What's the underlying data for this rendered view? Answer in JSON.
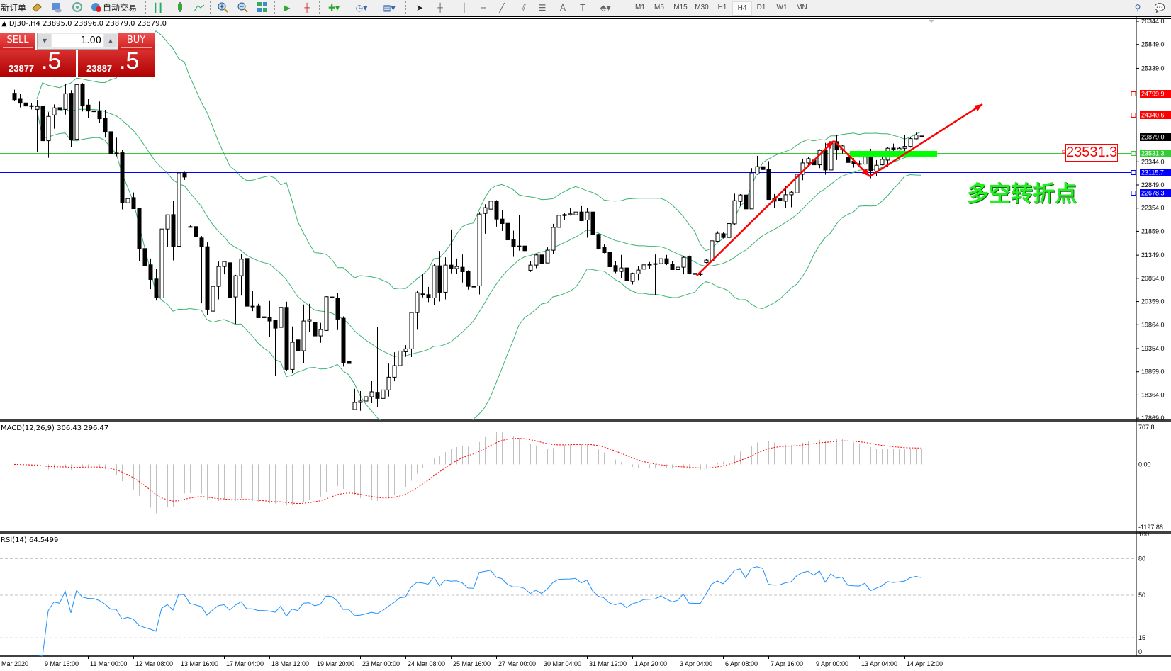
{
  "toolbar": {
    "new_order_label": "新订单",
    "auto_trading_label": "自动交易",
    "icons": [
      "new-order-icon",
      "navigator-icon",
      "data-window-icon",
      "signals-icon",
      "auto-trading-icon",
      "bar-chart-icon",
      "candlestick-icon",
      "line-chart-icon",
      "zoom-in-icon",
      "zoom-out-icon",
      "tile-windows-icon",
      "autoscroll-icon",
      "chart-shift-icon",
      "indicators-icon",
      "periods-icon",
      "templates-icon",
      "cursor-icon",
      "crosshair-icon",
      "vertical-line-icon",
      "horizontal-line-icon",
      "trendline-icon",
      "equidistant-channel-icon",
      "fibonacci-icon",
      "text-icon",
      "text-label-icon",
      "arrows-icon",
      "search-icon",
      "chat-icon"
    ],
    "timeframes": [
      "M1",
      "M5",
      "M15",
      "M30",
      "H1",
      "H4",
      "D1",
      "W1",
      "MN"
    ],
    "active_timeframe": "H4"
  },
  "chart_header": "DJ30-,H4  23895.0 23896.0 23879.0 23879.0",
  "trade_panel": {
    "sell_label": "SELL",
    "buy_label": "BUY",
    "lot_value": "1.00",
    "sell_price_main": "23877",
    "sell_price_big": ".5",
    "buy_price_main": "23887",
    "buy_price_big": ".5"
  },
  "annotation": {
    "level_label": "23531.3",
    "text": "多空转折点",
    "text_color": "#22ee22",
    "arrow_color": "#ff0000",
    "zone_color": "#00ff00"
  },
  "chart_data": {
    "type": "candlestick",
    "symbol": "DJ30-",
    "timeframe": "H4",
    "ylim": [
      17869.0,
      26344.0
    ],
    "price_ticks": [
      "26344.0",
      "25849.0",
      "25339.0",
      "23344.0",
      "22849.0",
      "22354.0",
      "21859.0",
      "21349.0",
      "20854.0",
      "20359.0",
      "19864.0",
      "19354.0",
      "18859.0",
      "18364.0",
      "17869.0"
    ],
    "levels": [
      {
        "value": 24799.9,
        "label": "24799.9",
        "color": "#ff0000"
      },
      {
        "value": 24340.6,
        "label": "24340.6",
        "color": "#ff0000"
      },
      {
        "value": 23879.0,
        "label": "23879.0",
        "color": "#c0c0c0",
        "label_bg": "#000000"
      },
      {
        "value": 23531.3,
        "label": "23531.3",
        "color": "#33cc33"
      },
      {
        "value": 23115.7,
        "label": "23115.7",
        "color": "#0000ff"
      },
      {
        "value": 22678.3,
        "label": "22678.3",
        "color": "#0000ff"
      }
    ],
    "time_labels": [
      "Mar 2020",
      "9 Mar 16:00",
      "11 Mar 00:00",
      "12 Mar 08:00",
      "13 Mar 16:00",
      "17 Mar 04:00",
      "18 Mar 12:00",
      "19 Mar 20:00",
      "23 Mar 00:00",
      "24 Mar 08:00",
      "25 Mar 16:00",
      "27 Mar 00:00",
      "30 Mar 04:00",
      "31 Mar 12:00",
      "1 Apr 20:00",
      "3 Apr 04:00",
      "6 Apr 08:00",
      "7 Apr 16:00",
      "9 Apr 00:00",
      "13 Apr 04:00",
      "14 Apr 12:00"
    ],
    "ohlc_fields": [
      "open",
      "high",
      "low",
      "close"
    ],
    "ohlc": [
      [
        24806,
        24882,
        24640,
        24670
      ],
      [
        24680,
        24796,
        24504,
        24595
      ],
      [
        24600,
        24655,
        24519,
        24534
      ],
      [
        24539,
        24590,
        24463,
        24535
      ],
      [
        24463,
        24665,
        23546,
        24524
      ],
      [
        24524,
        24630,
        23672,
        23793
      ],
      [
        23793,
        24403,
        23430,
        24312
      ],
      [
        24343,
        24569,
        24050,
        24494
      ],
      [
        24499,
        24771,
        24413,
        24458
      ],
      [
        24463,
        25008,
        24353,
        24796
      ],
      [
        24806,
        24872,
        23657,
        23823
      ],
      [
        23823,
        24998,
        23823,
        24993
      ],
      [
        24993,
        25023,
        24418,
        24534
      ],
      [
        24554,
        24680,
        24277,
        24428
      ],
      [
        24433,
        24438,
        24126,
        24413
      ],
      [
        24423,
        24630,
        24176,
        24262
      ],
      [
        24272,
        24453,
        23859,
        23975
      ],
      [
        23985,
        24227,
        23309,
        23521
      ],
      [
        23531,
        23859,
        23461,
        23506
      ],
      [
        23536,
        23592,
        22327,
        22463
      ],
      [
        22468,
        22916,
        22422,
        22558
      ],
      [
        22578,
        22689,
        22342,
        22342
      ],
      [
        22347,
        22347,
        21228,
        21480
      ],
      [
        21490,
        22830,
        21117,
        21117
      ],
      [
        21142,
        21278,
        20623,
        20830
      ],
      [
        20840,
        21051,
        20381,
        20436
      ],
      [
        20436,
        22095,
        20406,
        21908
      ],
      [
        21908,
        22211,
        21530,
        22211
      ],
      [
        22216,
        22508,
        21238,
        21540
      ],
      [
        21540,
        23118,
        21379,
        23108
      ],
      [
        23108,
        23128,
        22957,
        23017
      ],
      [
        21959,
        21984,
        21949,
        21949
      ],
      [
        21959,
        21959,
        21747,
        21747
      ],
      [
        21717,
        21757,
        20321,
        21525
      ],
      [
        21530,
        21621,
        20069,
        20195
      ],
      [
        20154,
        20774,
        20154,
        20683
      ],
      [
        20683,
        21213,
        20406,
        21107
      ],
      [
        21107,
        21213,
        20941,
        21213
      ],
      [
        21187,
        21187,
        20134,
        20436
      ],
      [
        20457,
        20930,
        19882,
        20910
      ],
      [
        20910,
        21379,
        20487,
        21263
      ],
      [
        21278,
        21278,
        20134,
        20260
      ],
      [
        20260,
        20583,
        20154,
        20250
      ],
      [
        20260,
        20311,
        20013,
        20013
      ],
      [
        20033,
        20043,
        20013,
        20013
      ],
      [
        20018,
        20371,
        19605,
        19943
      ],
      [
        19953,
        19968,
        18773,
        19791
      ],
      [
        19807,
        20406,
        19499,
        20235
      ],
      [
        20235,
        20356,
        18874,
        18909
      ],
      [
        18909,
        19827,
        18834,
        19489
      ],
      [
        19539,
        20008,
        19252,
        19302
      ],
      [
        19307,
        20296,
        19051,
        19943
      ],
      [
        19943,
        20311,
        19701,
        19973
      ],
      [
        19917,
        19917,
        19403,
        19625
      ],
      [
        19625,
        19902,
        19479,
        19761
      ],
      [
        19741,
        20472,
        19741,
        20462
      ],
      [
        20457,
        20900,
        20235,
        20436
      ],
      [
        20431,
        20537,
        19751,
        19983
      ],
      [
        20003,
        20043,
        18970,
        19046
      ],
      [
        19081,
        19177,
        18985,
        19036
      ],
      [
        18052,
        18496,
        18052,
        18204
      ],
      [
        18204,
        18446,
        18027,
        18234
      ],
      [
        18234,
        18506,
        18103,
        18325
      ],
      [
        18325,
        18658,
        18189,
        18431
      ],
      [
        18421,
        19817,
        18108,
        18290
      ],
      [
        18290,
        19020,
        18153,
        18471
      ],
      [
        18471,
        19035,
        18330,
        18743
      ],
      [
        18743,
        19277,
        18657,
        18990
      ],
      [
        18990,
        19388,
        18924,
        19302
      ],
      [
        19287,
        19428,
        19177,
        19348
      ],
      [
        19348,
        20129,
        19172,
        20124
      ],
      [
        20124,
        20588,
        19756,
        20547
      ],
      [
        20522,
        20941,
        20447,
        20512
      ],
      [
        20507,
        20673,
        20346,
        20436
      ],
      [
        20436,
        21162,
        20285,
        21122
      ],
      [
        21122,
        21440,
        20361,
        20558
      ],
      [
        20558,
        21303,
        20406,
        21137
      ],
      [
        21137,
        21898,
        20961,
        21072
      ],
      [
        21062,
        21278,
        20951,
        21107
      ],
      [
        21092,
        21364,
        20764,
        20996
      ],
      [
        20996,
        21026,
        20613,
        20683
      ],
      [
        20683,
        20991,
        20648,
        20673
      ],
      [
        20694,
        22271,
        20512,
        22226
      ],
      [
        22241,
        22437,
        21807,
        22362
      ],
      [
        22332,
        22533,
        22231,
        22503
      ],
      [
        22498,
        22523,
        21959,
        22120
      ],
      [
        22120,
        22311,
        21868,
        22024
      ],
      [
        22029,
        22135,
        21656,
        21676
      ],
      [
        21676,
        21873,
        21314,
        21525
      ],
      [
        21545,
        22201,
        21445,
        21530
      ],
      [
        21545,
        21545,
        21369,
        21445
      ],
      [
        21026,
        21228,
        20991,
        21137
      ],
      [
        21137,
        21379,
        21072,
        21354
      ],
      [
        21354,
        21833,
        21162,
        21172
      ],
      [
        21182,
        21515,
        21182,
        21455
      ],
      [
        21455,
        22019,
        21379,
        21943
      ],
      [
        21943,
        22251,
        21782,
        22201
      ],
      [
        22195,
        22246,
        22095,
        22216
      ],
      [
        22211,
        22352,
        22195,
        22231
      ],
      [
        22211,
        22362,
        21999,
        22271
      ],
      [
        22271,
        22397,
        22075,
        22085
      ],
      [
        22100,
        22352,
        21722,
        22271
      ],
      [
        22271,
        22271,
        21722,
        21782
      ],
      [
        21792,
        21807,
        21470,
        21495
      ],
      [
        21510,
        21576,
        21389,
        21404
      ],
      [
        21414,
        21430,
        20961,
        21102
      ],
      [
        21127,
        21228,
        20966,
        21001
      ],
      [
        21001,
        21354,
        20860,
        21077
      ],
      [
        21077,
        21077,
        20658,
        20799
      ],
      [
        20789,
        20976,
        20724,
        20961
      ],
      [
        20951,
        21112,
        20815,
        21031
      ],
      [
        21051,
        21177,
        20910,
        21142
      ],
      [
        21142,
        21203,
        21051,
        21152
      ],
      [
        21152,
        21364,
        20497,
        21167
      ],
      [
        21167,
        21339,
        20724,
        21273
      ],
      [
        21273,
        21354,
        21137,
        21162
      ],
      [
        21152,
        21228,
        21036,
        21041
      ],
      [
        21041,
        21177,
        20910,
        21092
      ],
      [
        21092,
        21329,
        20941,
        21303
      ],
      [
        21318,
        21339,
        20941,
        20951
      ],
      [
        20961,
        21051,
        20739,
        20941
      ],
      [
        20951,
        20976,
        20910,
        20941
      ],
      [
        21193,
        21263,
        21177,
        21243
      ],
      [
        21228,
        21696,
        21213,
        21656
      ],
      [
        21646,
        21858,
        21646,
        21817
      ],
      [
        21807,
        21833,
        21707,
        21727
      ],
      [
        21727,
        22059,
        21646,
        22024
      ],
      [
        22019,
        22664,
        21994,
        22513
      ],
      [
        22498,
        22654,
        22397,
        22634
      ],
      [
        22634,
        22715,
        22301,
        22337
      ],
      [
        22337,
        23209,
        22337,
        23108
      ],
      [
        23083,
        23471,
        23067,
        23239
      ],
      [
        23239,
        23486,
        22826,
        23178
      ],
      [
        23178,
        23355,
        22538,
        22538
      ],
      [
        22558,
        22654,
        22352,
        22503
      ],
      [
        22553,
        22614,
        22261,
        22513
      ],
      [
        22503,
        22830,
        22352,
        22639
      ],
      [
        22639,
        22725,
        22372,
        22694
      ],
      [
        22679,
        23178,
        22573,
        23077
      ],
      [
        23077,
        23410,
        22951,
        23319
      ],
      [
        23319,
        23445,
        23269,
        23410
      ],
      [
        23380,
        23385,
        23193,
        23279
      ],
      [
        23279,
        23612,
        23209,
        23587
      ],
      [
        23587,
        23748,
        23067,
        23168
      ],
      [
        23168,
        23884,
        23042,
        23773
      ],
      [
        23773,
        23914,
        23380,
        23597
      ],
      [
        23597,
        23697,
        23521,
        23682
      ],
      [
        23440,
        23445,
        23284,
        23329
      ],
      [
        23355,
        23420,
        23219,
        23304
      ],
      [
        23304,
        23370,
        23269,
        23294
      ],
      [
        23294,
        23445,
        23244,
        23445
      ],
      [
        23445,
        23622,
        22992,
        23143
      ],
      [
        23143,
        23380,
        23042,
        23269
      ],
      [
        23279,
        23445,
        23269,
        23395
      ],
      [
        23380,
        23662,
        23244,
        23632
      ],
      [
        23637,
        23733,
        23571,
        23597
      ],
      [
        23597,
        23662,
        23587,
        23632
      ],
      [
        23632,
        23924,
        23571,
        23672
      ],
      [
        23672,
        23864,
        23647,
        23838
      ],
      [
        23834,
        23965,
        23823,
        23914
      ],
      [
        23895,
        23896,
        23879,
        23879
      ]
    ],
    "overlays": {
      "bollinger": {
        "period": 20,
        "deviation": 2,
        "color": "#3cb371"
      }
    },
    "macd": {
      "label": "MACD(12,26,9) 306.43 296.47",
      "ticks": [
        "707.8",
        "0.00",
        "-1197.88"
      ],
      "ylim": [
        -1197.88,
        707.8
      ],
      "histogram_color": "#c0c0c0",
      "signal_color": "#ff0000"
    },
    "rsi": {
      "label": "RSI(14) 64.5499",
      "ticks": [
        "100",
        "80",
        "50",
        "15",
        "0"
      ],
      "levels": [
        80,
        50,
        15
      ],
      "ylim": [
        0,
        100
      ],
      "color": "#1e90ff"
    },
    "bullish_color": "#ffffff",
    "bearish_color": "#000000",
    "grid": false
  }
}
